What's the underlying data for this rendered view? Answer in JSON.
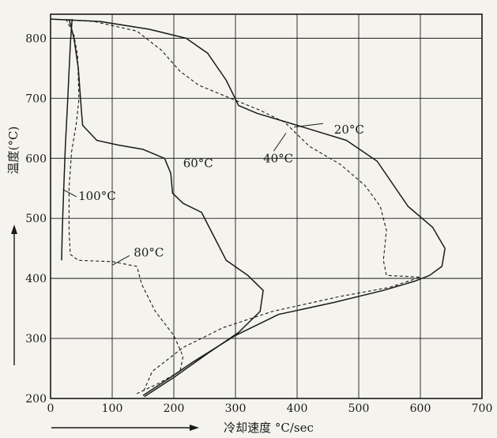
{
  "chart_data": {
    "type": "line",
    "title": "",
    "xlabel": "冷却速度 °C/sec",
    "ylabel": "温度(°C)",
    "xlim": [
      0,
      700
    ],
    "ylim": [
      200,
      840
    ],
    "xticks": [
      0,
      100,
      200,
      300,
      400,
      500,
      600,
      700
    ],
    "yticks": [
      200,
      300,
      400,
      500,
      600,
      700,
      800
    ],
    "grid": true,
    "series": [
      {
        "name": "20°C",
        "style": "solid",
        "points": [
          [
            0,
            832
          ],
          [
            80,
            828
          ],
          [
            160,
            815
          ],
          [
            220,
            800
          ],
          [
            255,
            775
          ],
          [
            285,
            730
          ],
          [
            305,
            688
          ],
          [
            335,
            675
          ],
          [
            400,
            655
          ],
          [
            480,
            630
          ],
          [
            530,
            595
          ],
          [
            580,
            520
          ],
          [
            620,
            485
          ],
          [
            640,
            450
          ],
          [
            635,
            420
          ],
          [
            615,
            405
          ],
          [
            590,
            395
          ],
          [
            540,
            380
          ],
          [
            460,
            360
          ],
          [
            370,
            340
          ],
          [
            300,
            305
          ],
          [
            230,
            260
          ],
          [
            190,
            232
          ],
          [
            150,
            205
          ]
        ]
      },
      {
        "name": "40°C",
        "style": "dashed",
        "points": [
          [
            0,
            832
          ],
          [
            70,
            828
          ],
          [
            140,
            812
          ],
          [
            180,
            780
          ],
          [
            210,
            745
          ],
          [
            240,
            722
          ],
          [
            280,
            705
          ],
          [
            340,
            680
          ],
          [
            380,
            660
          ],
          [
            420,
            620
          ],
          [
            470,
            590
          ],
          [
            510,
            555
          ],
          [
            535,
            520
          ],
          [
            545,
            480
          ],
          [
            540,
            430
          ],
          [
            545,
            405
          ],
          [
            600,
            402
          ],
          [
            550,
            385
          ],
          [
            470,
            370
          ],
          [
            360,
            345
          ],
          [
            280,
            318
          ],
          [
            215,
            285
          ],
          [
            165,
            245
          ],
          [
            150,
            210
          ]
        ]
      },
      {
        "name": "60°C",
        "style": "solid",
        "points": [
          [
            30,
            832
          ],
          [
            38,
            800
          ],
          [
            45,
            750
          ],
          [
            50,
            680
          ],
          [
            52,
            655
          ],
          [
            75,
            630
          ],
          [
            110,
            622
          ],
          [
            150,
            615
          ],
          [
            185,
            600
          ],
          [
            195,
            575
          ],
          [
            198,
            542
          ],
          [
            215,
            525
          ],
          [
            245,
            510
          ],
          [
            265,
            470
          ],
          [
            285,
            430
          ],
          [
            320,
            405
          ],
          [
            345,
            380
          ],
          [
            340,
            345
          ],
          [
            305,
            310
          ],
          [
            255,
            275
          ],
          [
            200,
            235
          ],
          [
            152,
            203
          ]
        ]
      },
      {
        "name": "80°C",
        "style": "dashed",
        "points": [
          [
            25,
            832
          ],
          [
            38,
            805
          ],
          [
            44,
            770
          ],
          [
            46,
            700
          ],
          [
            42,
            660
          ],
          [
            34,
            610
          ],
          [
            30,
            550
          ],
          [
            30,
            480
          ],
          [
            32,
            440
          ],
          [
            45,
            430
          ],
          [
            100,
            428
          ],
          [
            140,
            420
          ],
          [
            148,
            390
          ],
          [
            170,
            345
          ],
          [
            200,
            305
          ],
          [
            215,
            270
          ],
          [
            210,
            245
          ],
          [
            175,
            225
          ],
          [
            140,
            208
          ]
        ]
      },
      {
        "name": "100°C",
        "style": "solid",
        "points": [
          [
            35,
            832
          ],
          [
            32,
            790
          ],
          [
            28,
            700
          ],
          [
            24,
            620
          ],
          [
            21,
            540
          ],
          [
            19,
            480
          ],
          [
            18,
            430
          ]
        ]
      }
    ],
    "annotations": [
      {
        "text": "20°C",
        "x": 460,
        "y": 648
      },
      {
        "text": "40°C",
        "x": 345,
        "y": 600
      },
      {
        "text": "60°C",
        "x": 215,
        "y": 592
      },
      {
        "text": "80°C",
        "x": 135,
        "y": 443
      },
      {
        "text": "100°C",
        "x": 45,
        "y": 537
      }
    ]
  }
}
